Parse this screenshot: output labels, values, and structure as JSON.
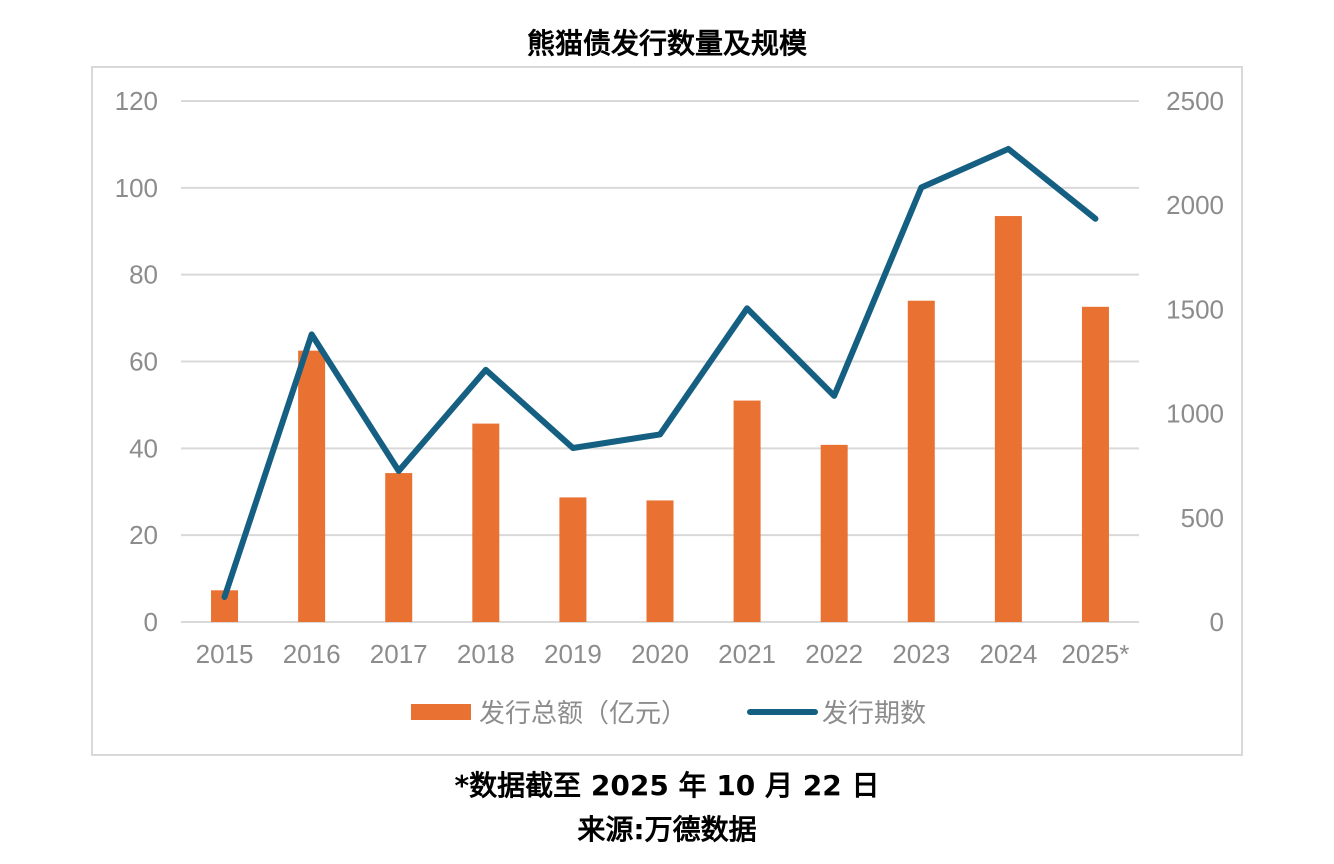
{
  "title": "熊猫债发行数量及规模",
  "notes": {
    "cutoff": "*数据截至  2025 年  10 月  22 日",
    "source": "来源:万德数据"
  },
  "colors": {
    "bar": "#E97132",
    "line": "#156082",
    "grid": "#d9d9d9",
    "axis_text": "#8c8c8c"
  },
  "chart_data": {
    "type": "bar",
    "categories": [
      "2015",
      "2016",
      "2017",
      "2018",
      "2019",
      "2020",
      "2021",
      "2022",
      "2023",
      "2024",
      "2025*"
    ],
    "series": [
      {
        "name": "发行总额（亿元）",
        "type": "bar",
        "axis": "left",
        "values": [
          7.3,
          62.5,
          34.3,
          45.7,
          28.7,
          28.0,
          51.0,
          40.8,
          74.0,
          93.5,
          72.6
        ]
      },
      {
        "name": "发行期数",
        "type": "line",
        "axis": "right",
        "values": [
          120,
          1380,
          725,
          1210,
          835,
          900,
          1505,
          1085,
          2085,
          2270,
          1935
        ]
      }
    ],
    "y_left": {
      "min": 0,
      "max": 120,
      "ticks": [
        "0",
        "20",
        "40",
        "60",
        "80",
        "100",
        "120"
      ]
    },
    "y_right": {
      "min": 0,
      "max": 2500,
      "ticks": [
        "0",
        "500",
        "1000",
        "1500",
        "2000",
        "2500"
      ]
    },
    "legend": "bottom",
    "grid": true
  }
}
